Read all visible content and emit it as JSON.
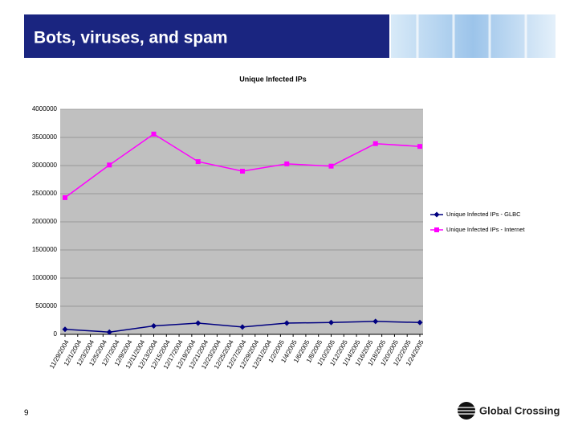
{
  "slide": {
    "title": "Bots, viruses, and spam",
    "page_number": "9",
    "logo": "Global Crossing"
  },
  "chart_data": {
    "type": "line",
    "title": "Unique Infected IPs",
    "x": [
      0,
      7,
      14,
      21,
      28,
      35,
      42,
      49,
      56
    ],
    "xlim": [
      0,
      56
    ],
    "xticks": [
      {
        "value": 0,
        "label": "11/29/2004"
      },
      {
        "value": 2,
        "label": "12/1/2004"
      },
      {
        "value": 4,
        "label": "12/3/2004"
      },
      {
        "value": 6,
        "label": "12/5/2004"
      },
      {
        "value": 8,
        "label": "12/7/2004"
      },
      {
        "value": 10,
        "label": "12/9/2004"
      },
      {
        "value": 12,
        "label": "12/11/2004"
      },
      {
        "value": 14,
        "label": "12/13/2004"
      },
      {
        "value": 16,
        "label": "12/15/2004"
      },
      {
        "value": 18,
        "label": "12/17/2004"
      },
      {
        "value": 20,
        "label": "12/19/2004"
      },
      {
        "value": 22,
        "label": "12/21/2004"
      },
      {
        "value": 24,
        "label": "12/23/2004"
      },
      {
        "value": 26,
        "label": "12/25/2004"
      },
      {
        "value": 28,
        "label": "12/27/2004"
      },
      {
        "value": 30,
        "label": "12/29/2004"
      },
      {
        "value": 32,
        "label": "12/31/2004"
      },
      {
        "value": 34,
        "label": "1/2/2005"
      },
      {
        "value": 36,
        "label": "1/4/2005"
      },
      {
        "value": 38,
        "label": "1/6/2005"
      },
      {
        "value": 40,
        "label": "1/8/2005"
      },
      {
        "value": 42,
        "label": "1/10/2005"
      },
      {
        "value": 44,
        "label": "1/12/2005"
      },
      {
        "value": 46,
        "label": "1/14/2005"
      },
      {
        "value": 48,
        "label": "1/16/2005"
      },
      {
        "value": 50,
        "label": "1/18/2005"
      },
      {
        "value": 52,
        "label": "1/20/2005"
      },
      {
        "value": 54,
        "label": "1/22/2005"
      },
      {
        "value": 56,
        "label": "1/24/2005"
      }
    ],
    "ylim": [
      0,
      4000000
    ],
    "yticks": [
      0,
      500000,
      1000000,
      1500000,
      2000000,
      2500000,
      3000000,
      3500000,
      4000000
    ],
    "grid": true,
    "legend": "right",
    "series": [
      {
        "name": "Unique Infected IPs - GLBC",
        "color": "#000080",
        "marker": "diamond",
        "values": [
          90000,
          40000,
          150000,
          200000,
          130000,
          200000,
          210000,
          230000,
          210000
        ]
      },
      {
        "name": "Unique Infected IPs - Internet",
        "color": "#ff00ff",
        "marker": "square",
        "values": [
          2430000,
          3010000,
          3560000,
          3070000,
          2900000,
          3030000,
          2990000,
          3390000,
          3340000
        ]
      }
    ]
  }
}
